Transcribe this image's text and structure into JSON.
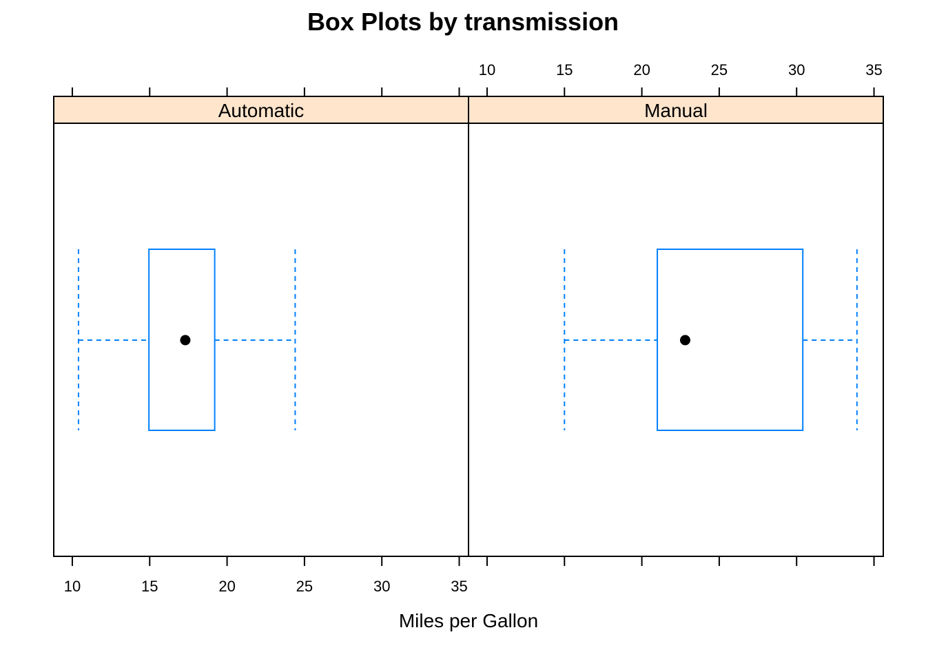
{
  "chart_data": {
    "type": "box",
    "title": "Box Plots by transmission",
    "xlabel": "Miles per Gallon",
    "ylabel": "",
    "xlim": [
      8.8,
      35.6
    ],
    "xticks": [
      10,
      15,
      20,
      25,
      30,
      35
    ],
    "xtick_labels": [
      "10",
      "15",
      "20",
      "25",
      "30",
      "35"
    ],
    "grid": false,
    "panels": [
      {
        "name": "Automatic",
        "whisker_low": 10.4,
        "q1": 14.95,
        "median": 17.3,
        "q3": 19.2,
        "whisker_high": 24.4
      },
      {
        "name": "Manual",
        "whisker_low": 15.0,
        "q1": 21.0,
        "median": 22.8,
        "q3": 30.4,
        "whisker_high": 33.9
      }
    ],
    "colors": {
      "box": "#0080ff",
      "median_dot": "#000000",
      "strip_fill": "#ffe5cc",
      "frame": "#000000"
    }
  }
}
